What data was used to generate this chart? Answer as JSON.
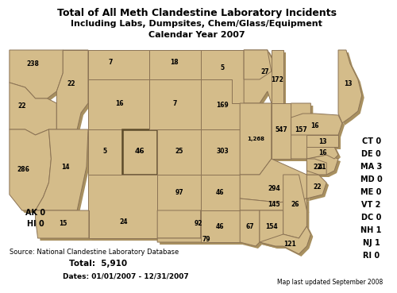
{
  "title_line1": "Total of All Meth Clandestine Laboratory Incidents",
  "title_line2": "Including Labs, Dumpsites, Chem/Glass/Equipment",
  "title_line3": "Calendar Year 2007",
  "map_fill_color": "#D4BC8A",
  "map_fill_light": "#E8D8B0",
  "map_edge_color": "#8B7355",
  "map_shadow_color": "#B8A070",
  "map_dark_edge": "#5C4A2A",
  "background_color": "#FFFFFF",
  "source_text": "Source: National Clandestine Laboratory Database",
  "total_label": "Total:  ",
  "total_value": "5,910",
  "dates_text": "Dates: 01/01/2007 - 12/31/2007",
  "updated_text": "Map last updated September 2008",
  "small_states_list": [
    [
      "CT",
      0
    ],
    [
      "DE",
      0
    ],
    [
      "MA",
      3
    ],
    [
      "MD",
      0
    ],
    [
      "ME",
      0
    ],
    [
      "VT",
      2
    ],
    [
      "DC",
      0
    ],
    [
      "NH",
      1
    ],
    [
      "NJ",
      1
    ],
    [
      "RI",
      0
    ]
  ]
}
